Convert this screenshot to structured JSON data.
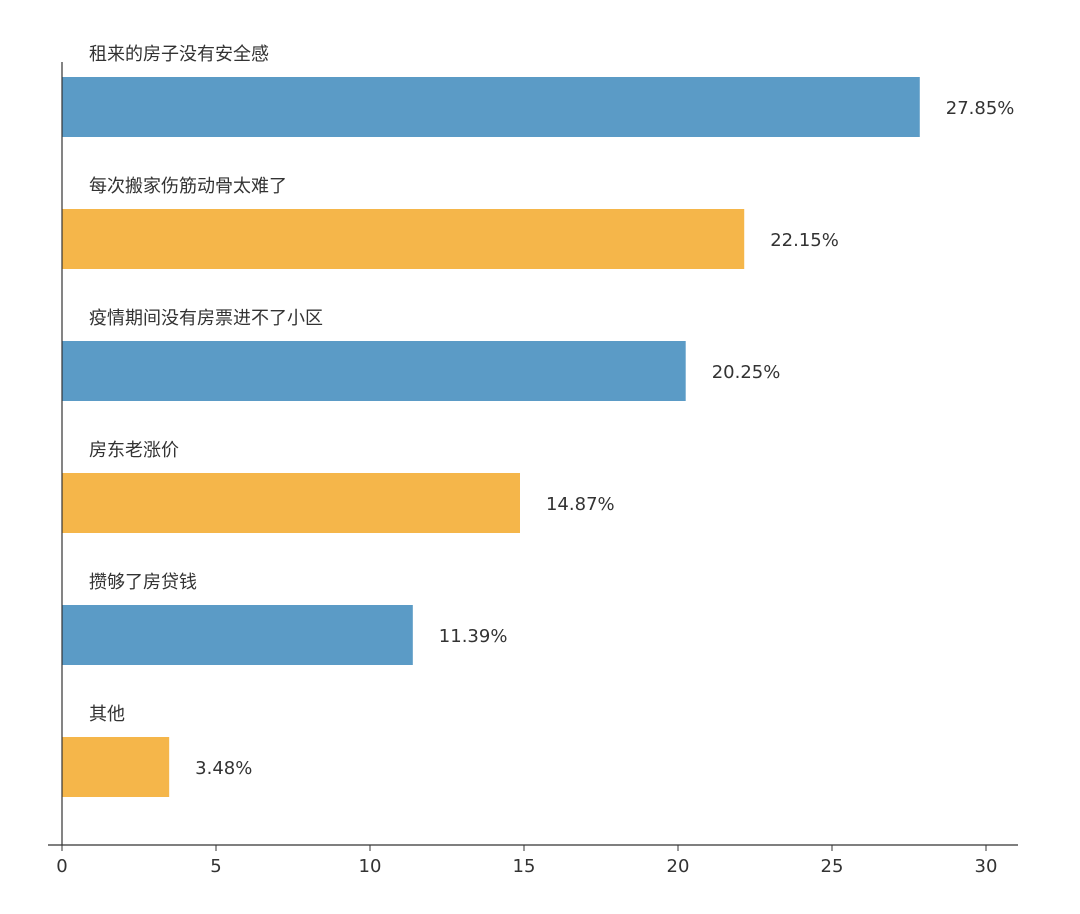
{
  "chart_data": {
    "type": "bar",
    "orientation": "horizontal",
    "categories": [
      "租来的房子没有安全感",
      "每次搬家伤筋动骨太难了",
      "疫情期间没有房票进不了小区",
      "房东老涨价",
      "攒够了房贷钱",
      "其他"
    ],
    "values": [
      27.85,
      22.15,
      20.25,
      14.87,
      11.39,
      3.48
    ],
    "value_labels": [
      "27.85%",
      "22.15%",
      "20.25%",
      "14.87%",
      "11.39%",
      "3.48%"
    ],
    "colors": [
      "#5b9bc6",
      "#f5b64a",
      "#5b9bc6",
      "#f5b64a",
      "#5b9bc6",
      "#f5b64a"
    ],
    "xlim": [
      0,
      30
    ],
    "x_ticks": [
      0,
      5,
      10,
      15,
      20,
      25,
      30
    ],
    "grid": false,
    "legend": "none"
  }
}
